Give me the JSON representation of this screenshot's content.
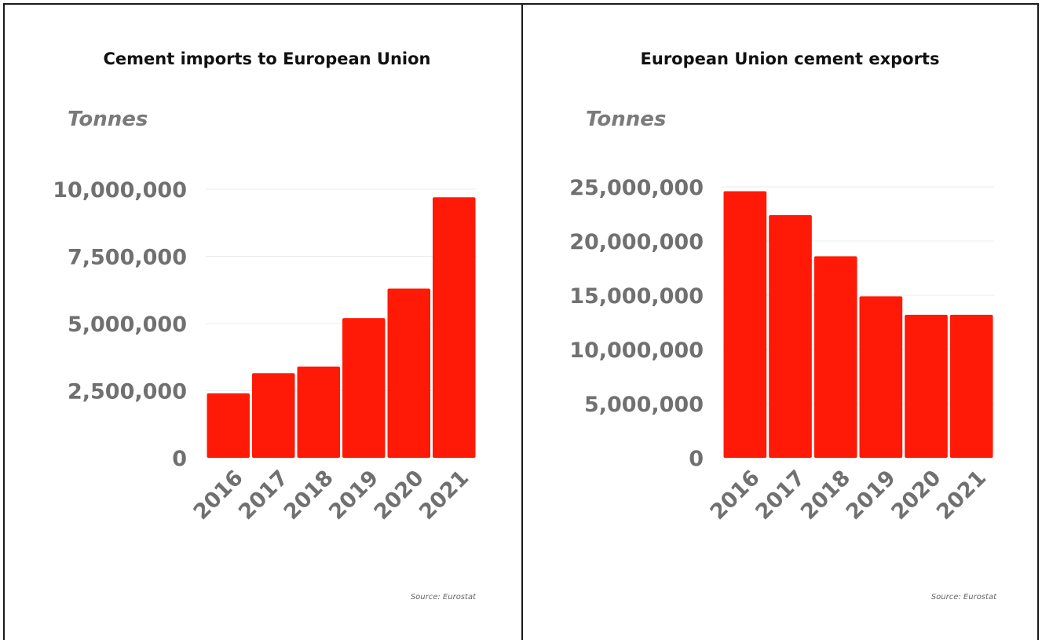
{
  "chart_data": [
    {
      "type": "bar",
      "title": "Cement imports to European Union",
      "ylabel": "Tonnes",
      "categories": [
        "2016",
        "2017",
        "2018",
        "2019",
        "2020",
        "2021"
      ],
      "values": [
        2400000,
        3150000,
        3400000,
        5200000,
        6300000,
        9700000
      ],
      "ylim": [
        0,
        10000000
      ],
      "yticks": [
        "0",
        "2,500,000",
        "5,000,000",
        "7,500,000",
        "10,000,000"
      ],
      "grid": true,
      "bar_color": "#ff1a08",
      "source": "Source: Eurostat"
    },
    {
      "type": "bar",
      "title": "European Union cement exports",
      "ylabel": "Tonnes",
      "categories": [
        "2016",
        "2017",
        "2018",
        "2019",
        "2020",
        "2021"
      ],
      "values": [
        24600000,
        22400000,
        18600000,
        14900000,
        13200000,
        13200000
      ],
      "ylim": [
        0,
        25000000
      ],
      "yticks": [
        "0",
        "5,000,000",
        "10,000,000",
        "15,000,000",
        "20,000,000",
        "25,000,000"
      ],
      "grid": true,
      "bar_color": "#ff1a08",
      "source": "Source: Eurostat"
    }
  ]
}
